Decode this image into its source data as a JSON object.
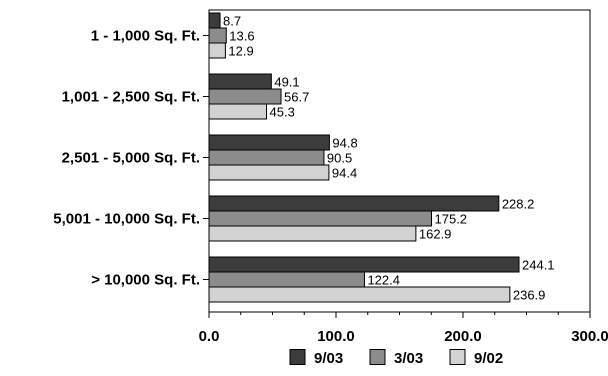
{
  "chart_data": {
    "type": "bar",
    "orientation": "horizontal",
    "categories": [
      "1 - 1,000 Sq. Ft.",
      "1,001 - 2,500 Sq. Ft.",
      "2,501 - 5,000 Sq. Ft.",
      "5,001 - 10,000 Sq. Ft.",
      "> 10,000 Sq. Ft."
    ],
    "series": [
      {
        "name": "9/03",
        "color": "#3c3c3c",
        "values": [
          8.7,
          49.1,
          94.8,
          228.2,
          244.1
        ]
      },
      {
        "name": "3/03",
        "color": "#8c8c8c",
        "values": [
          13.6,
          56.7,
          90.5,
          175.2,
          122.4
        ]
      },
      {
        "name": "9/02",
        "color": "#d2d2d2",
        "values": [
          12.9,
          45.3,
          94.4,
          162.9,
          236.9
        ]
      }
    ],
    "value_labels": [
      [
        "8.7",
        "49.1",
        "94.8",
        "228.2",
        "244.1"
      ],
      [
        "13.6",
        "56.7",
        "90.5",
        "175.2",
        "122.4"
      ],
      [
        "12.9",
        "45.3",
        "94.4",
        "162.9",
        "236.9"
      ]
    ],
    "xlim": [
      0,
      300
    ],
    "xticks": [
      0,
      100,
      200,
      300
    ],
    "xtick_labels": [
      "0.0",
      "100.0",
      "200.0",
      "300.0"
    ],
    "grid": false,
    "legend_position": "bottom"
  }
}
